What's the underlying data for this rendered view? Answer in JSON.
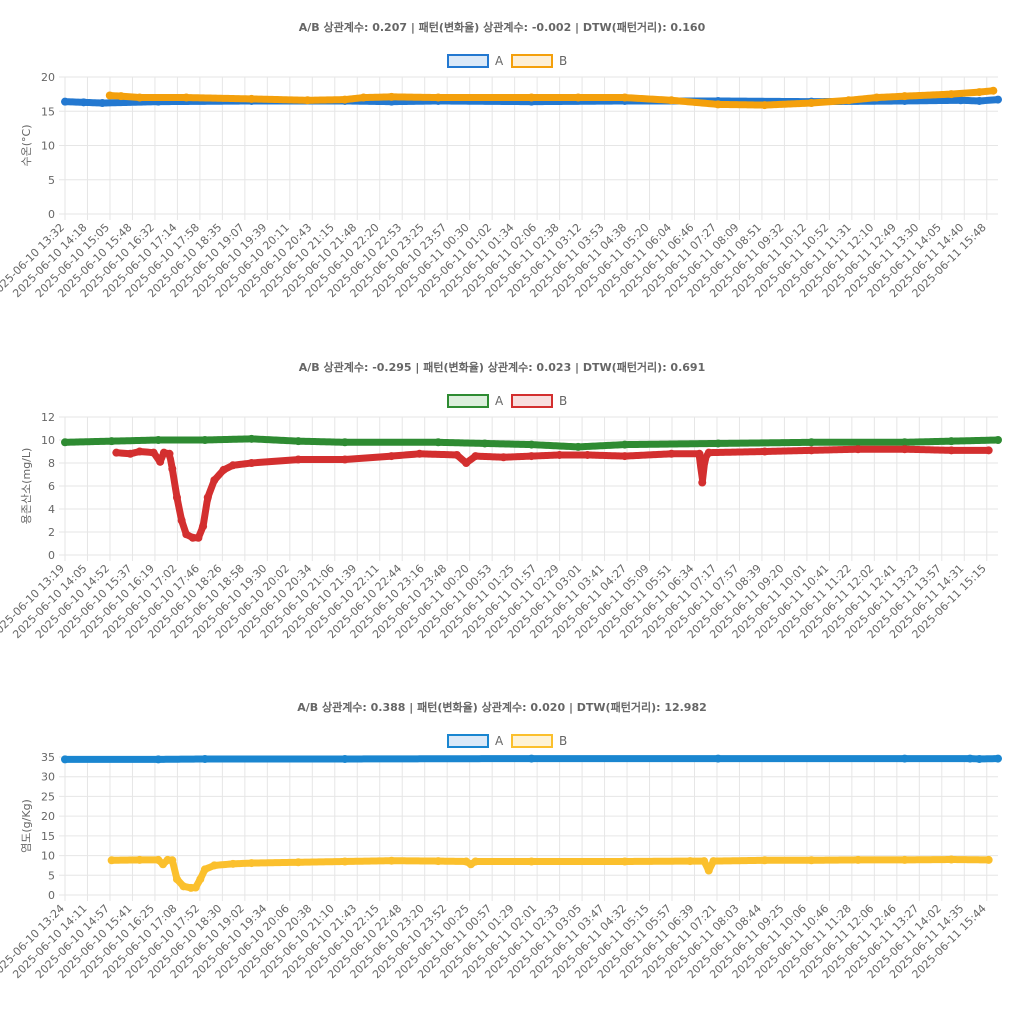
{
  "chart_data": [
    {
      "type": "line",
      "title": "A/B 상관계수: 0.207 | 패턴(변화율) 상관계수: -0.002 | DTW(패턴거리): 0.160",
      "ylabel": "수온(°C)",
      "ylim": [
        0,
        20
      ],
      "yticks": [
        0,
        5,
        10,
        15,
        20
      ],
      "grid": true,
      "legend_position": "top",
      "categories": [
        "2025-06-10 13:32",
        "2025-06-10 14:18",
        "2025-06-10 15:05",
        "2025-06-10 15:48",
        "2025-06-10 16:32",
        "2025-06-10 17:14",
        "2025-06-10 17:58",
        "2025-06-10 18:35",
        "2025-06-10 19:07",
        "2025-06-10 19:39",
        "2025-06-10 20:11",
        "2025-06-10 20:43",
        "2025-06-10 21:15",
        "2025-06-10 21:48",
        "2025-06-10 22:20",
        "2025-06-10 22:53",
        "2025-06-10 23:25",
        "2025-06-10 23:57",
        "2025-06-11 00:30",
        "2025-06-11 01:02",
        "2025-06-11 01:34",
        "2025-06-11 02:06",
        "2025-06-11 02:38",
        "2025-06-11 03:12",
        "2025-06-11 03:53",
        "2025-06-11 04:38",
        "2025-06-11 05:20",
        "2025-06-11 06:04",
        "2025-06-11 06:46",
        "2025-06-11 07:27",
        "2025-06-11 08:09",
        "2025-06-11 08:51",
        "2025-06-11 09:32",
        "2025-06-11 10:12",
        "2025-06-11 10:52",
        "2025-06-11 11:31",
        "2025-06-11 12:10",
        "2025-06-11 12:49",
        "2025-06-11 13:30",
        "2025-06-11 14:05",
        "2025-06-11 14:40",
        "2025-06-11 15:48"
      ],
      "series": [
        {
          "name": "A",
          "color": "#2378d0",
          "fill": "#dbe9f8",
          "start": 0,
          "end": 1,
          "points": [
            [
              0,
              16.4
            ],
            [
              0.02,
              16.3
            ],
            [
              0.04,
              16.2
            ],
            [
              0.1,
              16.4
            ],
            [
              0.2,
              16.5
            ],
            [
              0.3,
              16.5
            ],
            [
              0.35,
              16.4
            ],
            [
              0.4,
              16.5
            ],
            [
              0.5,
              16.4
            ],
            [
              0.6,
              16.5
            ],
            [
              0.7,
              16.5
            ],
            [
              0.8,
              16.4
            ],
            [
              0.9,
              16.5
            ],
            [
              0.96,
              16.6
            ],
            [
              0.98,
              16.5
            ],
            [
              1,
              16.7
            ]
          ]
        },
        {
          "name": "B",
          "color": "#f4a00c",
          "fill": "#fdefd6",
          "start": 0.048,
          "end": 0.995,
          "points": [
            [
              0.048,
              17.3
            ],
            [
              0.06,
              17.2
            ],
            [
              0.08,
              17.0
            ],
            [
              0.13,
              17.0
            ],
            [
              0.2,
              16.8
            ],
            [
              0.26,
              16.6
            ],
            [
              0.3,
              16.7
            ],
            [
              0.32,
              17.0
            ],
            [
              0.35,
              17.1
            ],
            [
              0.4,
              17.0
            ],
            [
              0.5,
              17.0
            ],
            [
              0.55,
              17.0
            ],
            [
              0.6,
              17.0
            ],
            [
              0.65,
              16.6
            ],
            [
              0.7,
              16.0
            ],
            [
              0.75,
              15.9
            ],
            [
              0.8,
              16.2
            ],
            [
              0.84,
              16.6
            ],
            [
              0.87,
              17.0
            ],
            [
              0.9,
              17.2
            ],
            [
              0.95,
              17.5
            ],
            [
              0.98,
              17.8
            ],
            [
              0.995,
              18.0
            ]
          ]
        }
      ]
    },
    {
      "type": "line",
      "title": "A/B 상관계수: -0.295 | 패턴(변화율) 상관계수: 0.023 | DTW(패턴거리): 0.691",
      "ylabel": "용존산소(mg/L)",
      "ylim": [
        0,
        12
      ],
      "yticks": [
        0,
        2,
        4,
        6,
        8,
        10,
        12
      ],
      "grid": true,
      "legend_position": "top",
      "categories": [
        "2025-06-10 13:19",
        "2025-06-10 14:05",
        "2025-06-10 14:52",
        "2025-06-10 15:37",
        "2025-06-10 16:19",
        "2025-06-10 17:02",
        "2025-06-10 17:46",
        "2025-06-10 18:26",
        "2025-06-10 18:58",
        "2025-06-10 19:30",
        "2025-06-10 20:02",
        "2025-06-10 20:34",
        "2025-06-10 21:06",
        "2025-06-10 21:39",
        "2025-06-10 22:11",
        "2025-06-10 22:44",
        "2025-06-10 23:16",
        "2025-06-10 23:48",
        "2025-06-11 00:20",
        "2025-06-11 00:53",
        "2025-06-11 01:25",
        "2025-06-11 01:57",
        "2025-06-11 02:29",
        "2025-06-11 03:01",
        "2025-06-11 03:41",
        "2025-06-11 04:27",
        "2025-06-11 05:09",
        "2025-06-11 05:51",
        "2025-06-11 06:34",
        "2025-06-11 07:17",
        "2025-06-11 07:57",
        "2025-06-11 08:39",
        "2025-06-11 09:20",
        "2025-06-11 10:01",
        "2025-06-11 10:41",
        "2025-06-11 11:22",
        "2025-06-11 12:02",
        "2025-06-11 12:41",
        "2025-06-11 13:23",
        "2025-06-11 13:57",
        "2025-06-11 14:31",
        "2025-06-11 15:15"
      ],
      "series": [
        {
          "name": "A",
          "color": "#2e8b32",
          "fill": "#dcefdc",
          "start": 0,
          "end": 1,
          "points": [
            [
              0,
              9.8
            ],
            [
              0.05,
              9.9
            ],
            [
              0.1,
              10.0
            ],
            [
              0.15,
              10.0
            ],
            [
              0.2,
              10.1
            ],
            [
              0.25,
              9.9
            ],
            [
              0.3,
              9.8
            ],
            [
              0.4,
              9.8
            ],
            [
              0.45,
              9.7
            ],
            [
              0.5,
              9.6
            ],
            [
              0.55,
              9.4
            ],
            [
              0.6,
              9.6
            ],
            [
              0.7,
              9.7
            ],
            [
              0.8,
              9.8
            ],
            [
              0.9,
              9.8
            ],
            [
              0.95,
              9.9
            ],
            [
              1,
              10.0
            ]
          ]
        },
        {
          "name": "B",
          "color": "#d32f2f",
          "fill": "#f8dede",
          "start": 0.055,
          "end": 0.99,
          "points": [
            [
              0.055,
              8.9
            ],
            [
              0.07,
              8.8
            ],
            [
              0.08,
              9.0
            ],
            [
              0.095,
              8.9
            ],
            [
              0.102,
              8.1
            ],
            [
              0.106,
              8.9
            ],
            [
              0.112,
              8.8
            ],
            [
              0.115,
              7.5
            ],
            [
              0.12,
              5.0
            ],
            [
              0.125,
              3.0
            ],
            [
              0.13,
              1.8
            ],
            [
              0.137,
              1.5
            ],
            [
              0.143,
              1.5
            ],
            [
              0.148,
              2.5
            ],
            [
              0.153,
              5.0
            ],
            [
              0.16,
              6.5
            ],
            [
              0.17,
              7.4
            ],
            [
              0.18,
              7.8
            ],
            [
              0.2,
              8.0
            ],
            [
              0.25,
              8.3
            ],
            [
              0.3,
              8.3
            ],
            [
              0.35,
              8.6
            ],
            [
              0.38,
              8.8
            ],
            [
              0.42,
              8.7
            ],
            [
              0.43,
              8.0
            ],
            [
              0.44,
              8.6
            ],
            [
              0.47,
              8.5
            ],
            [
              0.5,
              8.6
            ],
            [
              0.53,
              8.7
            ],
            [
              0.56,
              8.7
            ],
            [
              0.6,
              8.6
            ],
            [
              0.65,
              8.8
            ],
            [
              0.68,
              8.8
            ],
            [
              0.683,
              6.3
            ],
            [
              0.686,
              8.4
            ],
            [
              0.69,
              8.9
            ],
            [
              0.75,
              9.0
            ],
            [
              0.8,
              9.1
            ],
            [
              0.85,
              9.2
            ],
            [
              0.9,
              9.2
            ],
            [
              0.95,
              9.1
            ],
            [
              0.99,
              9.1
            ]
          ]
        }
      ]
    },
    {
      "type": "line",
      "title": "A/B 상관계수: 0.388 | 패턴(변화율) 상관계수: 0.020 | DTW(패턴거리): 12.982",
      "ylabel": "염도(g/Kg)",
      "ylim": [
        0,
        35
      ],
      "yticks": [
        0,
        5,
        10,
        15,
        20,
        25,
        30,
        35
      ],
      "grid": true,
      "legend_position": "top",
      "categories": [
        "2025-06-10 13:24",
        "2025-06-10 14:11",
        "2025-06-10 14:57",
        "2025-06-10 15:41",
        "2025-06-10 16:25",
        "2025-06-10 17:08",
        "2025-06-10 17:52",
        "2025-06-10 18:30",
        "2025-06-10 19:02",
        "2025-06-10 19:34",
        "2025-06-10 20:06",
        "2025-06-10 20:38",
        "2025-06-10 21:10",
        "2025-06-10 21:43",
        "2025-06-10 22:15",
        "2025-06-10 22:48",
        "2025-06-10 23:20",
        "2025-06-10 23:52",
        "2025-06-11 00:25",
        "2025-06-11 00:57",
        "2025-06-11 01:29",
        "2025-06-11 02:01",
        "2025-06-11 02:33",
        "2025-06-11 03:05",
        "2025-06-11 03:47",
        "2025-06-11 04:32",
        "2025-06-11 05:15",
        "2025-06-11 05:57",
        "2025-06-11 06:39",
        "2025-06-11 07:21",
        "2025-06-11 08:03",
        "2025-06-11 08:44",
        "2025-06-11 09:25",
        "2025-06-11 10:06",
        "2025-06-11 10:46",
        "2025-06-11 11:28",
        "2025-06-11 12:06",
        "2025-06-11 12:46",
        "2025-06-11 13:27",
        "2025-06-11 14:02",
        "2025-06-11 14:35",
        "2025-06-11 15:44"
      ],
      "series": [
        {
          "name": "A",
          "color": "#1a86d0",
          "fill": "#dbe9f8",
          "start": 0,
          "end": 1,
          "points": [
            [
              0,
              34.4
            ],
            [
              0.1,
              34.4
            ],
            [
              0.15,
              34.5
            ],
            [
              0.3,
              34.5
            ],
            [
              0.5,
              34.6
            ],
            [
              0.7,
              34.6
            ],
            [
              0.9,
              34.6
            ],
            [
              0.97,
              34.6
            ],
            [
              0.98,
              34.5
            ],
            [
              1,
              34.6
            ]
          ]
        },
        {
          "name": "B",
          "color": "#fbc02d",
          "fill": "#fef3d6",
          "start": 0.05,
          "end": 0.99,
          "points": [
            [
              0.05,
              8.8
            ],
            [
              0.08,
              8.9
            ],
            [
              0.1,
              8.9
            ],
            [
              0.105,
              7.8
            ],
            [
              0.11,
              8.9
            ],
            [
              0.115,
              8.8
            ],
            [
              0.12,
              4.0
            ],
            [
              0.127,
              2.2
            ],
            [
              0.135,
              1.8
            ],
            [
              0.14,
              1.9
            ],
            [
              0.145,
              4.0
            ],
            [
              0.15,
              6.5
            ],
            [
              0.16,
              7.5
            ],
            [
              0.18,
              7.9
            ],
            [
              0.2,
              8.1
            ],
            [
              0.25,
              8.3
            ],
            [
              0.3,
              8.5
            ],
            [
              0.35,
              8.7
            ],
            [
              0.4,
              8.6
            ],
            [
              0.43,
              8.5
            ],
            [
              0.435,
              7.8
            ],
            [
              0.44,
              8.5
            ],
            [
              0.5,
              8.5
            ],
            [
              0.6,
              8.5
            ],
            [
              0.67,
              8.6
            ],
            [
              0.685,
              8.6
            ],
            [
              0.69,
              6.2
            ],
            [
              0.695,
              8.6
            ],
            [
              0.75,
              8.8
            ],
            [
              0.8,
              8.8
            ],
            [
              0.85,
              8.9
            ],
            [
              0.9,
              8.9
            ],
            [
              0.95,
              9.0
            ],
            [
              0.99,
              8.9
            ]
          ]
        }
      ]
    }
  ]
}
